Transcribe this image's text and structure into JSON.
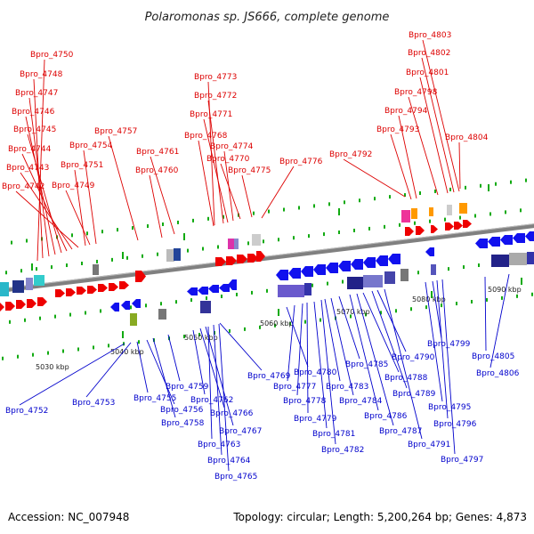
{
  "title": "Polaromonas sp. JS666, complete genome",
  "footer": {
    "accession": "Accession: NC_007948",
    "summary": "Topology: circular; Length: 5,200,264 bp; Genes: 4,873"
  },
  "colors": {
    "forward_label": "#dd0000",
    "reverse_label": "#0000cc",
    "forward_arrow": "#ee0000",
    "reverse_arrow": "#1111ee",
    "tick": "#11aa11",
    "axis": "#808080"
  },
  "ruler": [
    "5030 kbp",
    "5040 kbp",
    "5050 kbp",
    "5060 kbp",
    "5070 kbp",
    "5080 kbp",
    "5090 kbp"
  ],
  "top_labels": [
    "Bpro_4750",
    "Bpro_4748",
    "Bpro_4747",
    "Bpro_4746",
    "Bpro_4745",
    "Bpro_4744",
    "Bpro_4743",
    "Bpro_4742",
    "Bpro_4757",
    "Bpro_4754",
    "Bpro_4751",
    "Bpro_4749",
    "Bpro_4761",
    "Bpro_4760",
    "Bpro_4773",
    "Bpro_4772",
    "Bpro_4771",
    "Bpro_4768",
    "Bpro_4774",
    "Bpro_4770",
    "Bpro_4775",
    "Bpro_4776",
    "Bpro_4792",
    "Bpro_4803",
    "Bpro_4802",
    "Bpro_4801",
    "Bpro_4798",
    "Bpro_4794",
    "Bpro_4793",
    "Bpro_4804"
  ],
  "bottom_labels": [
    "Bpro_4752",
    "Bpro_4753",
    "Bpro_4755",
    "Bpro_4756",
    "Bpro_4758",
    "Bpro_4759",
    "Bpro_4762",
    "Bpro_4766",
    "Bpro_4767",
    "Bpro_4763",
    "Bpro_4764",
    "Bpro_4765",
    "Bpro_4769",
    "Bpro_4780",
    "Bpro_4777",
    "Bpro_4778",
    "Bpro_4779",
    "Bpro_4781",
    "Bpro_4782",
    "Bpro_4783",
    "Bpro_4784",
    "Bpro_4785",
    "Bpro_4786",
    "Bpro_4787",
    "Bpro_4788",
    "Bpro_4789",
    "Bpro_4790",
    "Bpro_4791",
    "Bpro_4795",
    "Bpro_4796",
    "Bpro_4797",
    "Bpro_4799",
    "Bpro_4805",
    "Bpro_4806"
  ]
}
